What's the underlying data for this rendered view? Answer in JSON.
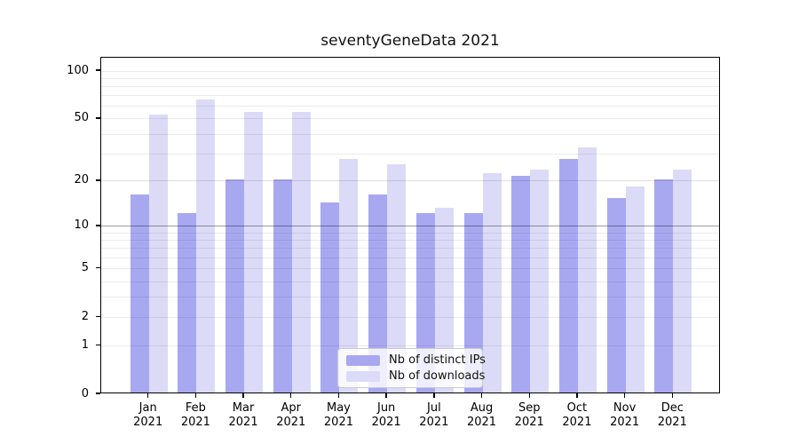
{
  "chart_data": {
    "type": "bar",
    "title": "seventyGeneData 2021",
    "categories": [
      "Jan 2021",
      "Feb 2021",
      "Mar 2021",
      "Apr 2021",
      "May 2021",
      "Jun 2021",
      "Jul 2021",
      "Aug 2021",
      "Sep 2021",
      "Oct 2021",
      "Nov 2021",
      "Dec 2021"
    ],
    "series": [
      {
        "name": "Nb of distinct IPs",
        "color": "#a8a8f1",
        "values": [
          16,
          12,
          20,
          20,
          14,
          16,
          12,
          12,
          21,
          27,
          15,
          20
        ]
      },
      {
        "name": "Nb of downloads",
        "color": "#dbdbf8",
        "values": [
          52,
          65,
          54,
          54,
          27,
          25,
          13,
          22,
          23,
          32,
          18,
          23
        ]
      }
    ],
    "yscale": "symlog-log1p",
    "ylim": [
      0,
      115
    ],
    "ytick_values": [
      100,
      50,
      20,
      10,
      5,
      2,
      1,
      0
    ],
    "ytick_labels": [
      "100",
      "50",
      "20",
      "10",
      "5",
      "2",
      "1",
      "0"
    ],
    "gridline_values": [
      1,
      2,
      3,
      4,
      5,
      6,
      7,
      8,
      9,
      10,
      20,
      30,
      40,
      50,
      60,
      70,
      80,
      90,
      100
    ],
    "grid": "on",
    "legend_position": "lower center"
  },
  "colors": {
    "grid_minor": "rgba(0,0,0,0.08)",
    "grid_mid": "rgba(0,0,0,0.13)",
    "grid_strong": "rgba(0,0,0,0.38)",
    "axis": "#000000",
    "text": "#111111"
  }
}
